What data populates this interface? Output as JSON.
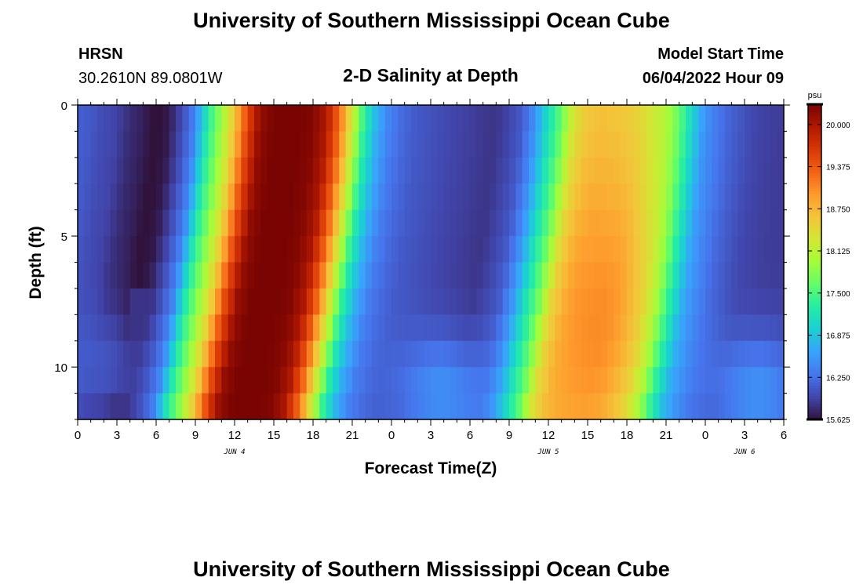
{
  "page": {
    "title": "University of Southern Mississippi Ocean Cube",
    "footer_title": "University of Southern Mississippi Ocean Cube",
    "station": "HRSN",
    "coords": "30.2610N  89.0801W",
    "subtitle": "2-D Salinity at Depth",
    "model_label": "Model Start Time",
    "model_time": "06/04/2022 Hour 09"
  },
  "chart_data": {
    "type": "heatmap",
    "title": "2-D Salinity at Depth",
    "xlabel": "Forecast Time(Z)",
    "ylabel": "Depth (ft)",
    "x_range_hours": [
      0,
      54
    ],
    "y_range_ft": [
      0,
      12
    ],
    "x_ticks": [
      {
        "hour": 0,
        "label": "0"
      },
      {
        "hour": 3,
        "label": "3"
      },
      {
        "hour": 6,
        "label": "6"
      },
      {
        "hour": 9,
        "label": "9"
      },
      {
        "hour": 12,
        "label": "12"
      },
      {
        "hour": 15,
        "label": "15"
      },
      {
        "hour": 18,
        "label": "18"
      },
      {
        "hour": 21,
        "label": "21"
      },
      {
        "hour": 24,
        "label": "0"
      },
      {
        "hour": 27,
        "label": "3"
      },
      {
        "hour": 30,
        "label": "6"
      },
      {
        "hour": 33,
        "label": "9"
      },
      {
        "hour": 36,
        "label": "12"
      },
      {
        "hour": 39,
        "label": "15"
      },
      {
        "hour": 42,
        "label": "18"
      },
      {
        "hour": 45,
        "label": "21"
      },
      {
        "hour": 48,
        "label": "0"
      },
      {
        "hour": 51,
        "label": "3"
      },
      {
        "hour": 54,
        "label": "6"
      }
    ],
    "y_ticks": [
      {
        "depth": 0,
        "label": "0"
      },
      {
        "depth": 5,
        "label": "5"
      },
      {
        "depth": 10,
        "label": "10"
      }
    ],
    "day_labels": [
      {
        "hour": 12,
        "label": "JUN 4"
      },
      {
        "hour": 36,
        "label": "JUN 5"
      },
      {
        "hour": 51,
        "label": "JUN 6"
      }
    ],
    "colorbar": {
      "unit": "psu",
      "min": 15.625,
      "max": 20.3,
      "ticks": [
        "20.000",
        "19.375",
        "18.750",
        "18.125",
        "17.500",
        "16.875",
        "16.250",
        "15.625"
      ],
      "colors": [
        "#30123b",
        "#4145ab",
        "#4675ed",
        "#39a2fc",
        "#1bcfd4",
        "#24eca6",
        "#61fc6c",
        "#a4fc3b",
        "#d1e834",
        "#f3c63a",
        "#fe9b2d",
        "#f36315",
        "#d93806",
        "#b11901",
        "#7a0402"
      ]
    },
    "grid": {
      "time_step_hours": 0.5,
      "depth_levels": [
        0.5,
        1.5,
        2.5,
        3.5,
        4.5,
        5.5,
        6.5,
        7.5,
        8.5,
        9.5,
        10.5,
        11.5
      ],
      "surface_keyframes_hour": [
        0,
        1,
        2,
        3,
        4,
        5,
        6,
        7,
        8,
        9,
        10,
        11,
        12,
        13,
        14,
        15,
        16,
        17,
        18,
        19,
        20,
        21,
        22,
        23,
        24,
        25,
        26,
        27,
        28,
        29,
        30,
        31,
        32,
        33,
        34,
        35,
        36,
        37,
        38,
        39,
        40,
        41,
        42,
        43,
        44,
        45,
        46,
        47,
        48,
        49,
        50,
        51,
        52,
        53,
        54
      ],
      "surface_keyframes_psu": [
        16.15,
        16.1,
        16.0,
        15.95,
        15.8,
        15.72,
        15.6,
        15.68,
        16.0,
        16.4,
        17.3,
        17.9,
        18.6,
        19.5,
        20.15,
        20.3,
        20.3,
        20.3,
        20.25,
        20.0,
        19.3,
        18.3,
        17.3,
        16.7,
        16.35,
        16.2,
        16.1,
        16.05,
        16.0,
        15.95,
        15.92,
        15.88,
        15.85,
        15.95,
        16.1,
        16.5,
        17.1,
        17.6,
        18.3,
        18.55,
        18.6,
        18.55,
        18.5,
        18.4,
        18.2,
        18.0,
        17.6,
        17.0,
        16.5,
        16.3,
        16.15,
        16.05,
        15.95,
        15.92,
        15.9
      ],
      "shift_hours_per_ft": 0.28,
      "shift_curve_power": 1.4,
      "dip_depth_ft": 5.0,
      "dip_depth_sigma": 5.0,
      "peak2_depth_ft": 9.0,
      "peak2_boost_psu": 1.5,
      "peak2_sigma": 3.5,
      "trough_fill": [
        {
          "hour": 2,
          "depth": 10,
          "psu": 16.3
        },
        {
          "hour": 28,
          "depth": 11,
          "psu": 16.9
        },
        {
          "hour": 52,
          "depth": 11,
          "psu": 16.9
        }
      ]
    }
  }
}
